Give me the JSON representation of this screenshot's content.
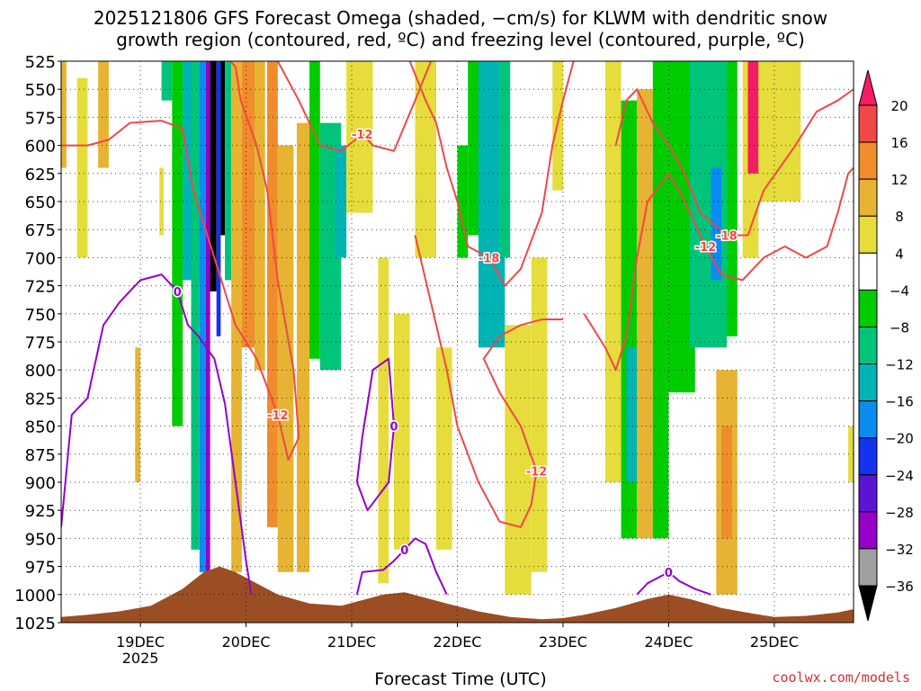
{
  "title_line1": "2025121806 GFS Forecast Omega (shaded, −cm/s) for KLWM with dendritic snow",
  "title_line2": "growth region (contoured, red, ºC) and freezing level (contoured, purple, ºC)",
  "xlabel": "Forecast Time (UTC)",
  "credit": "coolwx.com/models",
  "colors": {
    "dendritic": "#f04848",
    "freezing": "#9400cc",
    "terrain": "#9b4e24",
    "grid": "#000000"
  },
  "chart_data": {
    "type": "heatmap",
    "ylim": [
      525,
      1025
    ],
    "y_ticks": [
      "525",
      "550",
      "575",
      "600",
      "625",
      "650",
      "675",
      "700",
      "725",
      "750",
      "775",
      "800",
      "825",
      "850",
      "875",
      "900",
      "925",
      "950",
      "975",
      "1000",
      "1025"
    ],
    "x_ticks": [
      {
        "label": "19DEC",
        "sub": "2025",
        "day": 19
      },
      {
        "label": "20DEC",
        "sub": "",
        "day": 20
      },
      {
        "label": "21DEC",
        "sub": "",
        "day": 21
      },
      {
        "label": "22DEC",
        "sub": "",
        "day": 22
      },
      {
        "label": "23DEC",
        "sub": "",
        "day": 23
      },
      {
        "label": "24DEC",
        "sub": "",
        "day": 24
      },
      {
        "label": "25DEC",
        "sub": "",
        "day": 25
      }
    ],
    "xlim": [
      18.25,
      25.75
    ],
    "colorbar": {
      "labels": [
        "20",
        "16",
        "12",
        "8",
        "4",
        "−4",
        "−8",
        "−12",
        "−16",
        "−20",
        "−24",
        "−28",
        "−32",
        "−36"
      ],
      "colors": [
        "#f41c64",
        "#f04848",
        "#f08c2c",
        "#e6b432",
        "#e6dc3c",
        "#ffffff",
        "#00cc00",
        "#00c47a",
        "#00b4b4",
        "#0a8cf0",
        "#1432f0",
        "#5a14d2",
        "#9600c8",
        "#a0a0a0"
      ]
    },
    "shaded_regions": [
      {
        "t": [
          18.25,
          18.3
        ],
        "p": [
          525,
          620
        ],
        "v": 6
      },
      {
        "t": [
          18.4,
          18.5
        ],
        "p": [
          540,
          700
        ],
        "v": 5
      },
      {
        "t": [
          18.6,
          18.7
        ],
        "p": [
          525,
          620
        ],
        "v": 6
      },
      {
        "t": [
          18.95,
          19.0
        ],
        "p": [
          780,
          900
        ],
        "v": 6
      },
      {
        "t": [
          19.18,
          19.22
        ],
        "p": [
          620,
          680
        ],
        "v": 5
      },
      {
        "t": [
          19.2,
          19.3
        ],
        "p": [
          525,
          560
        ],
        "v": -8
      },
      {
        "t": [
          19.3,
          19.4
        ],
        "p": [
          525,
          850
        ],
        "v": -6
      },
      {
        "t": [
          19.4,
          19.6
        ],
        "p": [
          525,
          720
        ],
        "v": -14
      },
      {
        "t": [
          19.48,
          19.56
        ],
        "p": [
          525,
          960
        ],
        "v": -8
      },
      {
        "t": [
          19.56,
          19.62
        ],
        "p": [
          525,
          980
        ],
        "v": -18
      },
      {
        "t": [
          19.62,
          19.66
        ],
        "p": [
          525,
          980
        ],
        "v": -30
      },
      {
        "t": [
          19.66,
          19.72
        ],
        "p": [
          525,
          730
        ],
        "v": -36
      },
      {
        "t": [
          19.72,
          19.76
        ],
        "p": [
          525,
          770
        ],
        "v": -20
      },
      {
        "t": [
          19.76,
          19.8
        ],
        "p": [
          525,
          680
        ],
        "v": -36
      },
      {
        "t": [
          19.8,
          19.86
        ],
        "p": [
          525,
          720
        ],
        "v": -10
      },
      {
        "t": [
          19.86,
          19.96
        ],
        "p": [
          525,
          980
        ],
        "v": 6
      },
      {
        "t": [
          19.96,
          20.08
        ],
        "p": [
          525,
          780
        ],
        "v": 10
      },
      {
        "t": [
          20.08,
          20.18
        ],
        "p": [
          525,
          800
        ],
        "v": 6
      },
      {
        "t": [
          20.2,
          20.3
        ],
        "p": [
          525,
          940
        ],
        "v": 10
      },
      {
        "t": [
          20.3,
          20.45
        ],
        "p": [
          600,
          980
        ],
        "v": 6
      },
      {
        "t": [
          20.48,
          20.6
        ],
        "p": [
          580,
          980
        ],
        "v": 6
      },
      {
        "t": [
          20.6,
          20.7
        ],
        "p": [
          525,
          790
        ],
        "v": -6
      },
      {
        "t": [
          20.7,
          20.9
        ],
        "p": [
          580,
          800
        ],
        "v": -10
      },
      {
        "t": [
          20.85,
          20.95
        ],
        "p": [
          600,
          700
        ],
        "v": -14
      },
      {
        "t": [
          20.95,
          21.2
        ],
        "p": [
          525,
          660
        ],
        "v": 5
      },
      {
        "t": [
          21.25,
          21.35
        ],
        "p": [
          700,
          990
        ],
        "v": 5
      },
      {
        "t": [
          21.4,
          21.55
        ],
        "p": [
          750,
          960
        ],
        "v": 5
      },
      {
        "t": [
          21.6,
          21.8
        ],
        "p": [
          525,
          700
        ],
        "v": 5
      },
      {
        "t": [
          21.8,
          21.95
        ],
        "p": [
          780,
          960
        ],
        "v": 5
      },
      {
        "t": [
          22.0,
          22.1
        ],
        "p": [
          600,
          700
        ],
        "v": -6
      },
      {
        "t": [
          22.1,
          22.4
        ],
        "p": [
          525,
          680
        ],
        "v": -6
      },
      {
        "t": [
          22.2,
          22.45
        ],
        "p": [
          525,
          780
        ],
        "v": -14
      },
      {
        "t": [
          22.4,
          22.5
        ],
        "p": [
          525,
          700
        ],
        "v": -8
      },
      {
        "t": [
          22.45,
          22.7
        ],
        "p": [
          760,
          1000
        ],
        "v": 5
      },
      {
        "t": [
          22.7,
          22.85
        ],
        "p": [
          700,
          980
        ],
        "v": 5
      },
      {
        "t": [
          22.9,
          23.0
        ],
        "p": [
          525,
          640
        ],
        "v": 5
      },
      {
        "t": [
          23.4,
          23.55
        ],
        "p": [
          525,
          900
        ],
        "v": 5
      },
      {
        "t": [
          23.55,
          23.7
        ],
        "p": [
          560,
          950
        ],
        "v": -6
      },
      {
        "t": [
          23.6,
          23.7
        ],
        "p": [
          780,
          900
        ],
        "v": -14
      },
      {
        "t": [
          23.7,
          23.85
        ],
        "p": [
          550,
          950
        ],
        "v": 6
      },
      {
        "t": [
          23.85,
          24.0
        ],
        "p": [
          525,
          950
        ],
        "v": -6
      },
      {
        "t": [
          24.0,
          24.25
        ],
        "p": [
          525,
          820
        ],
        "v": -6
      },
      {
        "t": [
          24.2,
          24.55
        ],
        "p": [
          525,
          780
        ],
        "v": -10
      },
      {
        "t": [
          24.4,
          24.5
        ],
        "p": [
          620,
          720
        ],
        "v": -16
      },
      {
        "t": [
          24.55,
          24.65
        ],
        "p": [
          525,
          770
        ],
        "v": -6
      },
      {
        "t": [
          24.45,
          24.65
        ],
        "p": [
          800,
          1000
        ],
        "v": 6
      },
      {
        "t": [
          24.5,
          24.6
        ],
        "p": [
          850,
          950
        ],
        "v": 12
      },
      {
        "t": [
          24.7,
          24.85
        ],
        "p": [
          525,
          700
        ],
        "v": 5
      },
      {
        "t": [
          24.75,
          24.85
        ],
        "p": [
          525,
          625
        ],
        "v": 20
      },
      {
        "t": [
          24.85,
          25.25
        ],
        "p": [
          525,
          650
        ],
        "v": 5
      },
      {
        "t": [
          25.7,
          25.75
        ],
        "p": [
          850,
          900
        ],
        "v": 5
      }
    ],
    "dendritic_contours": [
      {
        "label": "-12",
        "points": [
          [
            18.25,
            600
          ],
          [
            18.5,
            600
          ],
          [
            18.7,
            595
          ],
          [
            18.9,
            580
          ],
          [
            19.2,
            578
          ],
          [
            19.4,
            585
          ],
          [
            19.5,
            640
          ],
          [
            19.7,
            700
          ],
          [
            19.9,
            760
          ],
          [
            20.1,
            790
          ],
          [
            20.3,
            840
          ],
          [
            20.4,
            880
          ],
          [
            20.5,
            860
          ],
          [
            20.45,
            800
          ],
          [
            20.3,
            720
          ],
          [
            20.2,
            640
          ],
          [
            20.1,
            600
          ],
          [
            19.95,
            560
          ],
          [
            19.9,
            530
          ],
          [
            19.85,
            525
          ]
        ]
      },
      {
        "label": "-12",
        "points": [
          [
            20.3,
            525
          ],
          [
            20.5,
            560
          ],
          [
            20.7,
            600
          ],
          [
            20.9,
            605
          ],
          [
            21.1,
            590
          ],
          [
            21.2,
            600
          ],
          [
            21.4,
            605
          ],
          [
            21.6,
            560
          ],
          [
            21.75,
            525
          ]
        ]
      },
      {
        "label": "-18",
        "points": [
          [
            21.55,
            525
          ],
          [
            21.7,
            560
          ],
          [
            21.8,
            580
          ],
          [
            21.9,
            620
          ],
          [
            22.0,
            650
          ],
          [
            22.1,
            690
          ],
          [
            22.3,
            700
          ],
          [
            22.45,
            725
          ],
          [
            22.6,
            710
          ],
          [
            22.8,
            660
          ],
          [
            22.9,
            600
          ],
          [
            23.0,
            560
          ],
          [
            23.1,
            525
          ]
        ]
      },
      {
        "label": "-12",
        "points": [
          [
            21.6,
            680
          ],
          [
            21.8,
            760
          ],
          [
            21.9,
            800
          ],
          [
            22.0,
            850
          ],
          [
            22.2,
            900
          ],
          [
            22.4,
            935
          ],
          [
            22.6,
            940
          ],
          [
            22.7,
            920
          ],
          [
            22.75,
            890
          ],
          [
            22.6,
            850
          ],
          [
            22.4,
            820
          ],
          [
            22.25,
            790
          ],
          [
            22.4,
            770
          ],
          [
            22.6,
            760
          ],
          [
            22.8,
            755
          ],
          [
            23.0,
            755
          ]
        ]
      },
      {
        "label": "-12",
        "points": [
          [
            23.2,
            750
          ],
          [
            23.4,
            780
          ],
          [
            23.5,
            800
          ],
          [
            23.6,
            770
          ],
          [
            23.7,
            700
          ],
          [
            23.8,
            650
          ],
          [
            24.0,
            625
          ],
          [
            24.1,
            640
          ],
          [
            24.2,
            660
          ],
          [
            24.35,
            690
          ],
          [
            24.5,
            715
          ],
          [
            24.7,
            720
          ],
          [
            24.9,
            700
          ],
          [
            25.1,
            690
          ],
          [
            25.3,
            700
          ],
          [
            25.5,
            690
          ],
          [
            25.6,
            660
          ],
          [
            25.7,
            625
          ],
          [
            25.75,
            620
          ]
        ]
      },
      {
        "label": "-18",
        "points": [
          [
            23.5,
            600
          ],
          [
            23.6,
            560
          ],
          [
            23.7,
            550
          ],
          [
            23.85,
            580
          ],
          [
            24.0,
            600
          ],
          [
            24.15,
            625
          ],
          [
            24.3,
            660
          ],
          [
            24.55,
            680
          ],
          [
            24.75,
            680
          ],
          [
            24.9,
            640
          ],
          [
            25.05,
            620
          ],
          [
            25.2,
            600
          ],
          [
            25.4,
            570
          ],
          [
            25.6,
            560
          ],
          [
            25.75,
            550
          ]
        ]
      }
    ],
    "freezing_contours": [
      {
        "label": "0",
        "points": [
          [
            18.25,
            940
          ],
          [
            18.35,
            840
          ],
          [
            18.5,
            825
          ],
          [
            18.65,
            760
          ],
          [
            18.8,
            740
          ],
          [
            19.0,
            720
          ],
          [
            19.2,
            715
          ],
          [
            19.35,
            730
          ],
          [
            19.45,
            760
          ],
          [
            19.55,
            770
          ],
          [
            19.7,
            790
          ],
          [
            19.8,
            830
          ],
          [
            19.9,
            900
          ],
          [
            20.0,
            970
          ],
          [
            20.05,
            1000
          ]
        ]
      },
      {
        "label": "0",
        "points": [
          [
            21.05,
            1000
          ],
          [
            21.1,
            980
          ],
          [
            21.3,
            978
          ],
          [
            21.4,
            970
          ],
          [
            21.5,
            960
          ],
          [
            21.6,
            950
          ],
          [
            21.7,
            955
          ],
          [
            21.8,
            980
          ],
          [
            21.9,
            1000
          ]
        ]
      },
      {
        "label": "0",
        "points": [
          [
            21.05,
            900
          ],
          [
            21.1,
            860
          ],
          [
            21.2,
            800
          ],
          [
            21.35,
            790
          ],
          [
            21.4,
            850
          ],
          [
            21.35,
            900
          ],
          [
            21.15,
            925
          ],
          [
            21.05,
            900
          ]
        ]
      },
      {
        "label": "0",
        "points": [
          [
            23.7,
            1000
          ],
          [
            23.8,
            990
          ],
          [
            23.9,
            985
          ],
          [
            24.0,
            980
          ],
          [
            24.1,
            988
          ],
          [
            24.25,
            995
          ],
          [
            24.4,
            1000
          ]
        ]
      }
    ],
    "terrain": {
      "values": [
        [
          18.25,
          1020
        ],
        [
          18.5,
          1018
        ],
        [
          18.8,
          1015
        ],
        [
          19.1,
          1010
        ],
        [
          19.4,
          995
        ],
        [
          19.6,
          980
        ],
        [
          19.75,
          975
        ],
        [
          19.9,
          980
        ],
        [
          20.1,
          990
        ],
        [
          20.3,
          1000
        ],
        [
          20.6,
          1008
        ],
        [
          20.9,
          1010
        ],
        [
          21.1,
          1005
        ],
        [
          21.3,
          1000
        ],
        [
          21.5,
          998
        ],
        [
          21.7,
          1003
        ],
        [
          21.9,
          1008
        ],
        [
          22.2,
          1015
        ],
        [
          22.5,
          1020
        ],
        [
          22.8,
          1022
        ],
        [
          23.0,
          1021
        ],
        [
          23.2,
          1018
        ],
        [
          23.5,
          1012
        ],
        [
          23.8,
          1004
        ],
        [
          24.0,
          1000
        ],
        [
          24.2,
          1004
        ],
        [
          24.5,
          1012
        ],
        [
          24.8,
          1017
        ],
        [
          25.0,
          1020
        ],
        [
          25.3,
          1019
        ],
        [
          25.6,
          1016
        ],
        [
          25.75,
          1013
        ]
      ]
    }
  }
}
